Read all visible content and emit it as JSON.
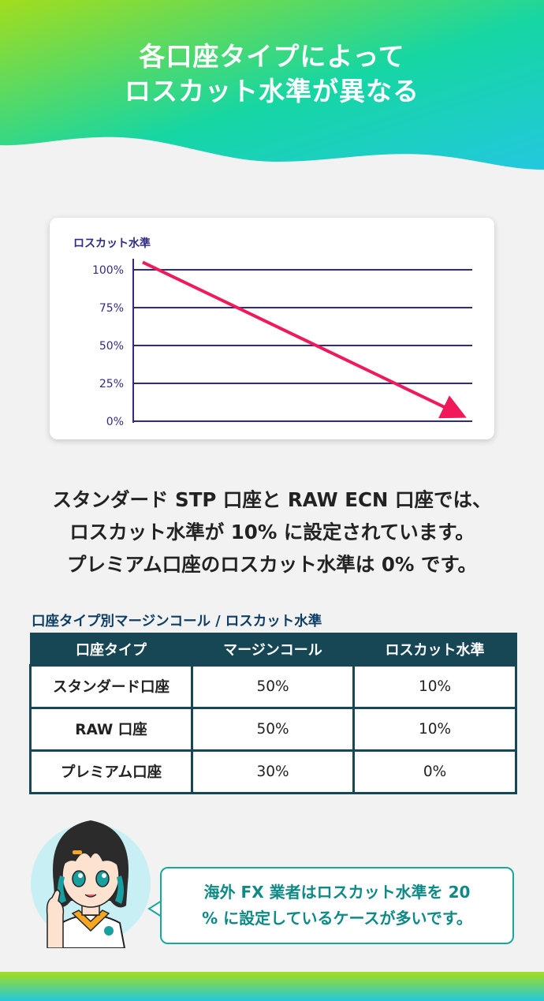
{
  "header": {
    "title_line1": "各口座タイプによって",
    "title_line2": "ロスカット水準が異なる"
  },
  "chart": {
    "ylabel": "ロスカット水準",
    "yticks": [
      "100%",
      "75%",
      "50%",
      "25%",
      "0%"
    ]
  },
  "chart_data": {
    "type": "line",
    "title": "",
    "ylabel": "ロスカット水準",
    "ylim": [
      0,
      100
    ],
    "y_ticks": [
      100,
      75,
      50,
      25,
      0
    ],
    "series": [
      {
        "values": [
          105,
          5
        ]
      }
    ],
    "grid": true,
    "colors": {
      "line": "#f0195a",
      "grid": "#2e2c86"
    }
  },
  "description": {
    "line1": "スタンダード STP 口座と RAW ECN 口座では、",
    "line2": "ロスカット水準が 10% に設定されています。",
    "line3": "プレミアム口座のロスカット水準は 0% です。"
  },
  "table": {
    "caption": "口座タイプ別マージンコール / ロスカット水準",
    "headers": [
      "口座タイプ",
      "マージンコール",
      "ロスカット水準"
    ],
    "rows": [
      {
        "type": "スタンダード口座",
        "margin_call": "50%",
        "stop_out": "10%"
      },
      {
        "type": "RAW 口座",
        "margin_call": "50%",
        "stop_out": "10%"
      },
      {
        "type": "プレミアム口座",
        "margin_call": "30%",
        "stop_out": "0%"
      }
    ]
  },
  "bubble": {
    "line1": "海外 FX 業者はロスカット水準を 20",
    "line2": "% に設定しているケースが多いです。"
  },
  "colors": {
    "header_gradient_start": "#a3dd1c",
    "header_gradient_end": "#22c8de",
    "table_header": "#174654",
    "accent": "#f0195a",
    "bubble_text": "#0e8a86"
  }
}
